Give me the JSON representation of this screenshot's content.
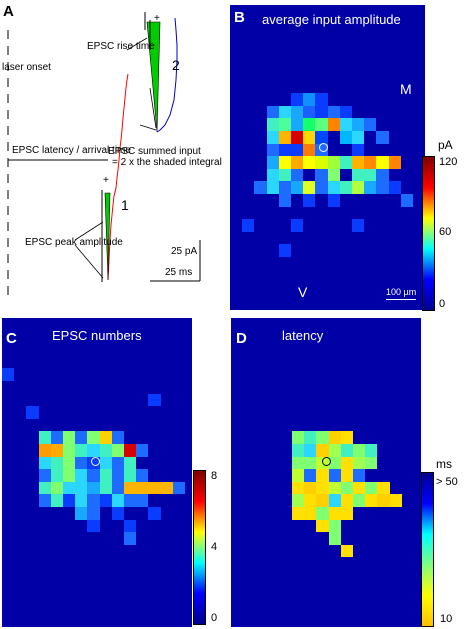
{
  "panelA": {
    "letter": "A",
    "laser_onset": "laser onset",
    "latency_label": "EPSC latency / arrival time",
    "rise_label": "EPSC rise time",
    "summed_label_1": "EPSC summed input",
    "summed_label_2": "= 2 x the shaded integral",
    "peak_label": "EPSC peak amplitude",
    "trace_1_label": "1",
    "trace_2_label": "2",
    "plus_1": "+",
    "plus_2": "+",
    "scale_y": "25 pA",
    "scale_x": "25 ms"
  },
  "panelB": {
    "letter": "B",
    "title": "average input amplitude",
    "orient_top": "M",
    "orient_bottom": "V",
    "scale_bar": "100 µm",
    "colorbar": {
      "unit": "pA",
      "ticks": [
        "120",
        "60",
        "0"
      ]
    }
  },
  "panelC": {
    "letter": "C",
    "title": "EPSC numbers",
    "colorbar": {
      "ticks": [
        "8",
        "4",
        "0"
      ]
    }
  },
  "panelD": {
    "letter": "D",
    "title": "latency",
    "colorbar": {
      "unit": "ms",
      "ticks": [
        "> 50",
        "10"
      ]
    }
  },
  "colors": {
    "background_map": "#0000a6",
    "trace_red": "#ff0000",
    "trace_blue": "#0000cc",
    "shade_green": "#00cc00"
  }
}
